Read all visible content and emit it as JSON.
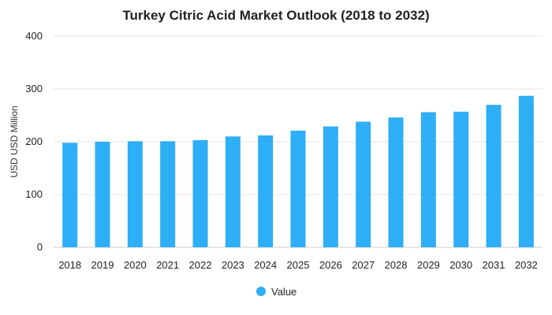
{
  "chart_data": {
    "type": "bar",
    "title": "Turkey Citric Acid Market Outlook (2018 to 2032)",
    "xlabel": "",
    "ylabel": "USD USD Million",
    "categories": [
      "2018",
      "2019",
      "2020",
      "2021",
      "2022",
      "2023",
      "2024",
      "2025",
      "2026",
      "2027",
      "2028",
      "2029",
      "2030",
      "2031",
      "2032"
    ],
    "series": [
      {
        "name": "Value",
        "color": "#2eaef5",
        "values": [
          198,
          200,
          201,
          201,
          203,
          210,
          212,
          221,
          229,
          238,
          246,
          256,
          257,
          270,
          287
        ]
      }
    ],
    "ylim": [
      0,
      400
    ],
    "yticks": [
      0,
      100,
      200,
      300,
      400
    ],
    "grid": true,
    "legend_position": "bottom"
  }
}
